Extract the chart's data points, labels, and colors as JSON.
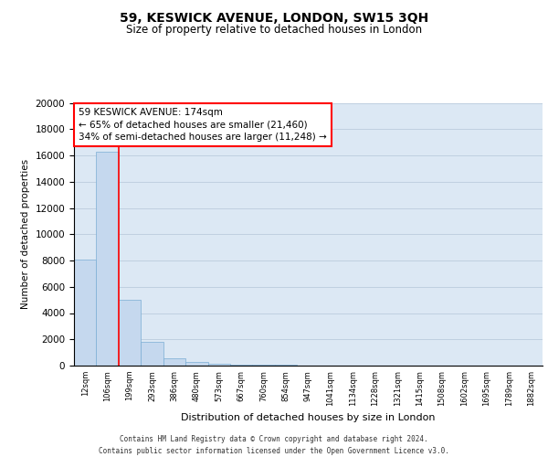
{
  "title1": "59, KESWICK AVENUE, LONDON, SW15 3QH",
  "title2": "Size of property relative to detached houses in London",
  "xlabel": "Distribution of detached houses by size in London",
  "ylabel": "Number of detached properties",
  "categories": [
    "12sqm",
    "106sqm",
    "199sqm",
    "293sqm",
    "386sqm",
    "480sqm",
    "573sqm",
    "667sqm",
    "760sqm",
    "854sqm",
    "947sqm",
    "1041sqm",
    "1134sqm",
    "1228sqm",
    "1321sqm",
    "1415sqm",
    "1508sqm",
    "1602sqm",
    "1695sqm",
    "1789sqm",
    "1882sqm"
  ],
  "values": [
    8050,
    16300,
    5000,
    1800,
    580,
    310,
    155,
    100,
    75,
    50,
    30,
    20,
    12,
    8,
    5,
    4,
    3,
    2,
    2,
    1,
    1
  ],
  "bar_color": "#c5d8ee",
  "bar_edge_color": "#7aadd4",
  "vline_color": "red",
  "annotation_text": "59 KESWICK AVENUE: 174sqm\n← 65% of detached houses are smaller (21,460)\n34% of semi-detached houses are larger (11,248) →",
  "annotation_box_color": "white",
  "annotation_box_edge": "red",
  "ylim": [
    0,
    20000
  ],
  "yticks": [
    0,
    2000,
    4000,
    6000,
    8000,
    10000,
    12000,
    14000,
    16000,
    18000,
    20000
  ],
  "grid_color": "#c0d0e0",
  "bg_color": "#dce8f4",
  "footer1": "Contains HM Land Registry data © Crown copyright and database right 2024.",
  "footer2": "Contains public sector information licensed under the Open Government Licence v3.0."
}
